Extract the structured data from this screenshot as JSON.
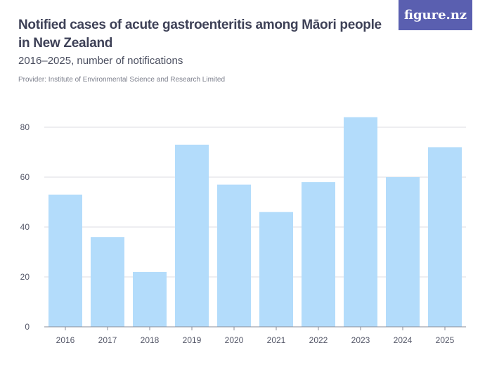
{
  "header": {
    "title": "Notified cases of acute gastroenteritis among Māori people in New Zealand",
    "subtitle": "2016–2025, number of notifications",
    "provider": "Provider: Institute of Environmental Science and Research Limited"
  },
  "logo": {
    "text": "figure.nz"
  },
  "colors": {
    "bar": "#b3dcfb",
    "grid": "#dcdde3",
    "axis": "#8a8c99",
    "logo_bg": "#5a5fb0"
  },
  "chart_data": {
    "type": "bar",
    "title": "",
    "xlabel": "",
    "ylabel": "",
    "categories": [
      "2016",
      "2017",
      "2018",
      "2019",
      "2020",
      "2021",
      "2022",
      "2023",
      "2024",
      "2025"
    ],
    "values": [
      53,
      36,
      22,
      73,
      57,
      46,
      58,
      84,
      60,
      72
    ],
    "ylim": [
      0,
      90
    ],
    "yticks": [
      0,
      20,
      40,
      60,
      80
    ],
    "grid": true,
    "legend": "none"
  }
}
